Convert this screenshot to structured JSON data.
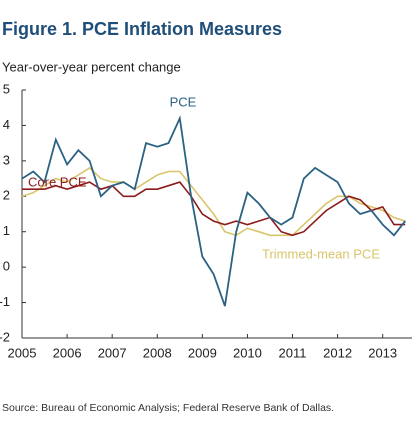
{
  "chart_data": {
    "type": "line",
    "title": "Figure 1. PCE Inflation Measures",
    "y_label": "Year-over-year percent change",
    "source": "Source: Bureau of Economic Analysis; Federal Reserve Bank of Dallas.",
    "x": [
      2005,
      2005.25,
      2005.5,
      2005.75,
      2006,
      2006.25,
      2006.5,
      2006.75,
      2007,
      2007.25,
      2007.5,
      2007.75,
      2008,
      2008.25,
      2008.5,
      2008.75,
      2009,
      2009.25,
      2009.5,
      2009.75,
      2010,
      2010.25,
      2010.5,
      2010.75,
      2011,
      2011.25,
      2011.5,
      2011.75,
      2012,
      2012.25,
      2012.5,
      2012.75,
      2013,
      2013.25,
      2013.5
    ],
    "series": [
      {
        "name": "PCE",
        "color": "#2b6283",
        "values": [
          2.5,
          2.7,
          2.4,
          3.6,
          2.9,
          3.3,
          3.0,
          2.0,
          2.3,
          2.4,
          2.2,
          3.5,
          3.4,
          3.5,
          4.2,
          2.0,
          0.3,
          -0.2,
          -1.1,
          1.0,
          2.1,
          1.8,
          1.4,
          1.2,
          1.4,
          2.5,
          2.8,
          2.6,
          2.4,
          1.8,
          1.5,
          1.6,
          1.2,
          0.9,
          1.3
        ]
      },
      {
        "name": "Core PCE",
        "color": "#8c1c1c",
        "values": [
          2.2,
          2.2,
          2.2,
          2.3,
          2.2,
          2.3,
          2.4,
          2.2,
          2.3,
          2.0,
          2.0,
          2.2,
          2.2,
          2.3,
          2.4,
          2.0,
          1.5,
          1.3,
          1.2,
          1.3,
          1.2,
          1.3,
          1.4,
          1.0,
          0.9,
          1.0,
          1.3,
          1.6,
          1.8,
          2.0,
          1.9,
          1.6,
          1.7,
          1.2,
          1.2
        ]
      },
      {
        "name": "Trimmed-mean PCE",
        "color": "#d9c56a",
        "values": [
          2.0,
          2.1,
          2.3,
          2.5,
          2.4,
          2.6,
          2.8,
          2.5,
          2.4,
          2.4,
          2.2,
          2.4,
          2.6,
          2.7,
          2.7,
          2.3,
          1.9,
          1.5,
          1.0,
          0.9,
          1.1,
          1.0,
          0.9,
          0.9,
          0.9,
          1.2,
          1.5,
          1.8,
          2.0,
          2.0,
          1.8,
          1.7,
          1.6,
          1.4,
          1.3
        ]
      }
    ],
    "xlim": [
      2005,
      2013.65
    ],
    "xticks": [
      2005,
      2006,
      2007,
      2008,
      2009,
      2010,
      2011,
      2012,
      2013
    ],
    "ylim": [
      -2,
      5
    ],
    "yticks": [
      -2,
      -1,
      0,
      1,
      2,
      3,
      4,
      5
    ]
  }
}
